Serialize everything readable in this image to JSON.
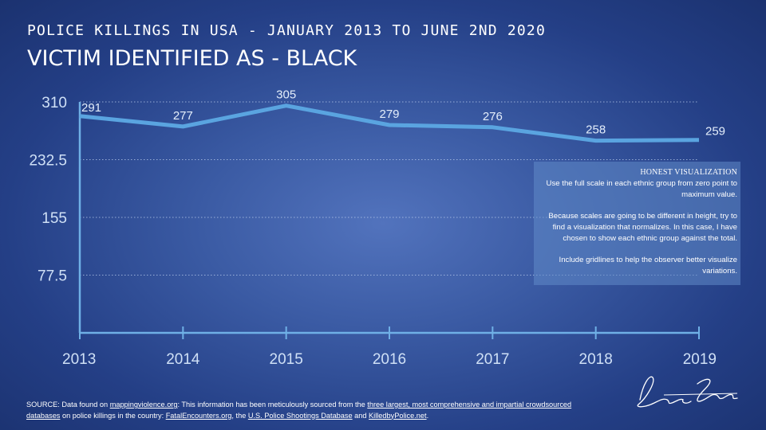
{
  "header": {
    "supertitle": "POLICE KILLINGS IN USA - JANUARY 2013 TO JUNE 2ND 2020",
    "title": "VICTIM IDENTIFIED AS - BLACK"
  },
  "chart_data": {
    "type": "line",
    "categories": [
      "2013",
      "2014",
      "2015",
      "2016",
      "2017",
      "2018",
      "2019"
    ],
    "series": [
      {
        "values": [
          291,
          277,
          305,
          279,
          276,
          258,
          259
        ]
      }
    ],
    "data_labels": [
      "291",
      "277",
      "305",
      "279",
      "276",
      "258",
      "259"
    ],
    "y_ticks": [
      "310",
      "232.5",
      "155",
      "77.5"
    ],
    "y_tick_values": [
      310,
      232.5,
      155,
      77.5
    ],
    "ylim": [
      0,
      310
    ],
    "gridlines": "dotted",
    "line_color": "#5aa4e0",
    "axis_color": "#6fb0e6"
  },
  "note": {
    "title": "HONEST VISUALIZATION",
    "p1": "Use the full scale in each ethnic group from zero point to maximum value.",
    "p2": "Because scales are going to be different in height, try to find a visualization that normalizes. In this case, I have chosen to show each ethnic group against the total.",
    "p3": "Include gridlines to help  the observer better visualize variations."
  },
  "source": {
    "prefix": "SOURCE: Data found on ",
    "link1": "mappingviolence.org",
    "mid1": ": This information has been meticulously sourced from the ",
    "link2": "three largest, most comprehensive and impartial crowdsourced databases",
    "mid2": " on police killings in the country: ",
    "link3": "FatalEncounters.org",
    "mid3": ", the ",
    "link4": "U.S. Police Shootings Database",
    "mid4": " and ",
    "link5": "KilledbyPolice.net",
    "suffix": "."
  }
}
